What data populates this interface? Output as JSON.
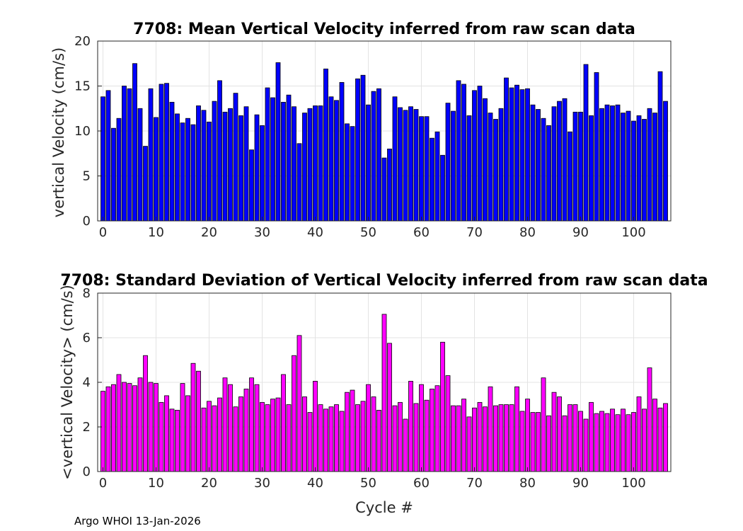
{
  "chart_data": [
    {
      "type": "bar",
      "title": "7708: Mean Vertical Velocity inferred from raw scan data",
      "xlabel": "",
      "ylabel": "vertical Velocity (cm/s)",
      "xlim": [
        -1,
        107
      ],
      "ylim": [
        0,
        20
      ],
      "xticks": [
        "0",
        "10",
        "20",
        "30",
        "40",
        "50",
        "60",
        "70",
        "80",
        "90",
        "100"
      ],
      "yticks": [
        "0",
        "5",
        "10",
        "15",
        "20"
      ],
      "grid": true,
      "bar_color": "#0000ff",
      "x": [
        0,
        1,
        2,
        3,
        4,
        5,
        6,
        7,
        8,
        9,
        10,
        11,
        12,
        13,
        14,
        15,
        16,
        17,
        18,
        19,
        20,
        21,
        22,
        23,
        24,
        25,
        26,
        27,
        28,
        29,
        30,
        31,
        32,
        33,
        34,
        35,
        36,
        37,
        38,
        39,
        40,
        41,
        42,
        43,
        44,
        45,
        46,
        47,
        48,
        49,
        50,
        51,
        52,
        53,
        54,
        55,
        56,
        57,
        58,
        59,
        60,
        61,
        62,
        63,
        64,
        65,
        66,
        67,
        68,
        69,
        70,
        71,
        72,
        73,
        74,
        75,
        76,
        77,
        78,
        79,
        80,
        81,
        82,
        83,
        84,
        85,
        86,
        87,
        88,
        89,
        90,
        91,
        92,
        93,
        94,
        95,
        96,
        97,
        98,
        99,
        100,
        101,
        102,
        103,
        104,
        105,
        106
      ],
      "values": [
        13.8,
        14.5,
        10.3,
        11.4,
        15.0,
        14.7,
        17.5,
        12.5,
        8.3,
        14.7,
        11.5,
        15.2,
        15.3,
        13.2,
        11.9,
        10.9,
        11.4,
        10.7,
        12.8,
        12.3,
        11.0,
        13.3,
        15.6,
        12.1,
        12.5,
        14.2,
        11.7,
        12.7,
        7.9,
        11.8,
        10.6,
        14.8,
        13.7,
        17.6,
        13.2,
        14.0,
        12.7,
        8.6,
        12.0,
        12.5,
        12.8,
        12.8,
        16.9,
        13.8,
        13.4,
        15.4,
        10.8,
        10.5,
        15.8,
        16.2,
        12.9,
        14.4,
        14.7,
        7.0,
        8.0,
        13.8,
        12.6,
        12.3,
        12.7,
        12.4,
        11.6,
        11.6,
        9.2,
        9.9,
        7.3,
        13.1,
        12.2,
        15.6,
        15.2,
        11.7,
        14.5,
        15.0,
        13.6,
        12.0,
        11.3,
        12.5,
        15.9,
        14.8,
        15.1,
        14.6,
        14.7,
        12.9,
        12.4,
        11.4,
        10.6,
        12.7,
        13.3,
        13.6,
        9.9,
        12.1,
        12.1,
        17.4,
        11.7,
        16.5,
        12.5,
        12.9,
        12.8,
        12.9,
        12.0,
        12.2,
        11.1,
        11.7,
        11.3,
        12.5,
        12.0,
        16.6,
        13.3
      ]
    },
    {
      "type": "bar",
      "title": "7708: Standard Deviation of Vertical Velocity inferred from raw scan data",
      "xlabel": "Cycle #",
      "ylabel": "<vertical Velocity> (cm/s)",
      "xlim": [
        -1,
        107
      ],
      "ylim": [
        0,
        8
      ],
      "xticks": [
        "0",
        "10",
        "20",
        "30",
        "40",
        "50",
        "60",
        "70",
        "80",
        "90",
        "100"
      ],
      "yticks": [
        "0",
        "2",
        "4",
        "6",
        "8"
      ],
      "grid": true,
      "bar_color": "#ff00ff",
      "x": [
        0,
        1,
        2,
        3,
        4,
        5,
        6,
        7,
        8,
        9,
        10,
        11,
        12,
        13,
        14,
        15,
        16,
        17,
        18,
        19,
        20,
        21,
        22,
        23,
        24,
        25,
        26,
        27,
        28,
        29,
        30,
        31,
        32,
        33,
        34,
        35,
        36,
        37,
        38,
        39,
        40,
        41,
        42,
        43,
        44,
        45,
        46,
        47,
        48,
        49,
        50,
        51,
        52,
        53,
        54,
        55,
        56,
        57,
        58,
        59,
        60,
        61,
        62,
        63,
        64,
        65,
        66,
        67,
        68,
        69,
        70,
        71,
        72,
        73,
        74,
        75,
        76,
        77,
        78,
        79,
        80,
        81,
        82,
        83,
        84,
        85,
        86,
        87,
        88,
        89,
        90,
        91,
        92,
        93,
        94,
        95,
        96,
        97,
        98,
        99,
        100,
        101,
        102,
        103,
        104,
        105,
        106
      ],
      "values": [
        3.6,
        3.8,
        3.9,
        4.35,
        4.0,
        3.95,
        3.85,
        4.2,
        5.2,
        4.0,
        3.95,
        3.1,
        3.4,
        2.8,
        2.75,
        3.95,
        3.4,
        4.85,
        4.5,
        2.85,
        3.15,
        2.95,
        3.3,
        4.2,
        3.9,
        2.9,
        3.35,
        3.7,
        4.2,
        3.9,
        3.1,
        3.0,
        3.25,
        3.3,
        4.35,
        3.0,
        5.2,
        6.1,
        3.35,
        2.65,
        4.05,
        3.0,
        2.8,
        2.9,
        3.0,
        2.7,
        3.55,
        3.65,
        3.0,
        3.15,
        3.9,
        3.35,
        2.75,
        7.05,
        5.75,
        2.95,
        3.1,
        2.35,
        4.05,
        3.05,
        3.9,
        3.2,
        3.7,
        3.85,
        5.8,
        4.3,
        2.95,
        2.95,
        3.25,
        2.45,
        2.85,
        3.1,
        2.9,
        3.8,
        2.95,
        3.0,
        3.0,
        3.0,
        3.8,
        2.7,
        3.25,
        2.65,
        2.65,
        4.2,
        2.5,
        3.55,
        3.35,
        2.5,
        3.0,
        3.0,
        2.7,
        2.35,
        3.1,
        2.6,
        2.7,
        2.6,
        2.8,
        2.55,
        2.8,
        2.55,
        2.65,
        3.35,
        2.8,
        4.65,
        3.25,
        2.85,
        3.05
      ]
    }
  ],
  "footer_text": "Argo WHOI 13-Jan-2026"
}
